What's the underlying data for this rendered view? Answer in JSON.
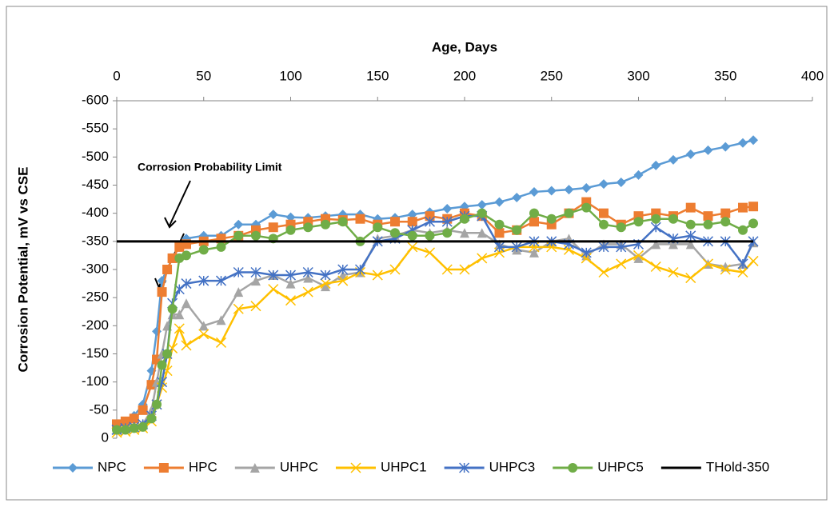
{
  "chart_data": {
    "type": "line",
    "x_label": "Age, Days",
    "y_label": "Corrosion Potential, mV vs CSE",
    "annotation": "Corrosion Probability Limit",
    "x": [
      0,
      5,
      10,
      15,
      20,
      23,
      26,
      29,
      32,
      36,
      40,
      50,
      60,
      70,
      80,
      90,
      100,
      110,
      120,
      130,
      140,
      150,
      160,
      170,
      180,
      190,
      200,
      210,
      220,
      230,
      240,
      250,
      260,
      270,
      280,
      290,
      300,
      310,
      320,
      330,
      340,
      350,
      360,
      366
    ],
    "series": [
      {
        "name": "NPC",
        "color": "#5b9bd5",
        "marker": "diamond",
        "values": [
          -25,
          -30,
          -40,
          -60,
          -120,
          -190,
          -280,
          -300,
          -320,
          -340,
          -355,
          -360,
          -360,
          -380,
          -380,
          -398,
          -393,
          -392,
          -395,
          -398,
          -398,
          -390,
          -392,
          -398,
          -402,
          -408,
          -412,
          -415,
          -420,
          -428,
          -438,
          -440,
          -442,
          -445,
          -452,
          -455,
          -468,
          -485,
          -495,
          -505,
          -512,
          -518,
          -525,
          -530
        ]
      },
      {
        "name": "HPC",
        "color": "#ed7d31",
        "marker": "square",
        "values": [
          -25,
          -30,
          -35,
          -50,
          -95,
          -140,
          -260,
          -300,
          -320,
          -340,
          -345,
          -350,
          -355,
          -360,
          -370,
          -375,
          -380,
          -385,
          -390,
          -388,
          -390,
          -380,
          -385,
          -385,
          -395,
          -390,
          -400,
          -395,
          -365,
          -370,
          -385,
          -380,
          -400,
          -420,
          -400,
          -380,
          -395,
          -400,
          -395,
          -410,
          -395,
          -400,
          -410,
          -412
        ]
      },
      {
        "name": "UHPC",
        "color": "#a5a5a5",
        "marker": "triangle",
        "values": [
          -15,
          -18,
          -20,
          -25,
          -50,
          -100,
          -150,
          -200,
          -220,
          -220,
          -240,
          -200,
          -210,
          -260,
          -280,
          -290,
          -275,
          -285,
          -270,
          -290,
          -295,
          -355,
          -360,
          -370,
          -365,
          -370,
          -365,
          -365,
          -345,
          -335,
          -330,
          -350,
          -355,
          -325,
          -345,
          -345,
          -320,
          -345,
          -345,
          -345,
          -310,
          -305,
          -310,
          -348
        ]
      },
      {
        "name": "UHPC1",
        "color": "#ffc000",
        "marker": "x",
        "values": [
          -10,
          -12,
          -15,
          -18,
          -30,
          -60,
          -90,
          -120,
          -160,
          -195,
          -165,
          -185,
          -170,
          -230,
          -235,
          -265,
          -245,
          -260,
          -275,
          -280,
          -295,
          -290,
          -300,
          -340,
          -330,
          -300,
          -300,
          -320,
          -330,
          -340,
          -340,
          -340,
          -335,
          -320,
          -295,
          -310,
          -325,
          -305,
          -295,
          -285,
          -310,
          -300,
          -295,
          -315
        ]
      },
      {
        "name": "UHPC3",
        "color": "#4472c4",
        "marker": "star",
        "values": [
          -15,
          -18,
          -20,
          -25,
          -40,
          -60,
          -100,
          -150,
          -240,
          -265,
          -275,
          -280,
          -280,
          -295,
          -295,
          -290,
          -290,
          -295,
          -290,
          -300,
          -300,
          -350,
          -355,
          -370,
          -385,
          -385,
          -395,
          -395,
          -340,
          -340,
          -350,
          -350,
          -345,
          -330,
          -340,
          -340,
          -345,
          -375,
          -355,
          -360,
          -350,
          -350,
          -310,
          -350
        ]
      },
      {
        "name": "UHPC5",
        "color": "#70ad47",
        "marker": "circle",
        "values": [
          -15,
          -15,
          -18,
          -20,
          -35,
          -60,
          -130,
          -150,
          -230,
          -320,
          -325,
          -335,
          -340,
          -360,
          -360,
          -355,
          -370,
          -375,
          -380,
          -385,
          -350,
          -375,
          -365,
          -360,
          -360,
          -365,
          -390,
          -400,
          -380,
          -370,
          -400,
          -390,
          -400,
          -410,
          -380,
          -375,
          -385,
          -390,
          -390,
          -380,
          -380,
          -385,
          -370,
          -382
        ]
      },
      {
        "name": "THold-350",
        "color": "#000000",
        "marker": "none",
        "values": [
          -350,
          -350,
          -350,
          -350,
          -350,
          -350,
          -350,
          -350,
          -350,
          -350,
          -350,
          -350,
          -350,
          -350,
          -350,
          -350,
          -350,
          -350,
          -350,
          -350,
          -350,
          -350,
          -350,
          -350,
          -350,
          -350,
          -350,
          -350,
          -350,
          -350,
          -350,
          -350,
          -350,
          -350,
          -350,
          -350,
          -350,
          -350,
          -350,
          -350,
          -350,
          -350,
          -350,
          -350
        ]
      }
    ],
    "xlim": [
      0,
      400
    ],
    "xticks": [
      0,
      50,
      100,
      150,
      200,
      250,
      300,
      350,
      400
    ],
    "ylim": [
      0,
      -600
    ],
    "yticks": [
      0,
      -50,
      -100,
      -150,
      -200,
      -250,
      -300,
      -350,
      -400,
      -450,
      -500,
      -550,
      -600
    ],
    "grid": false,
    "legend": "bottom"
  }
}
